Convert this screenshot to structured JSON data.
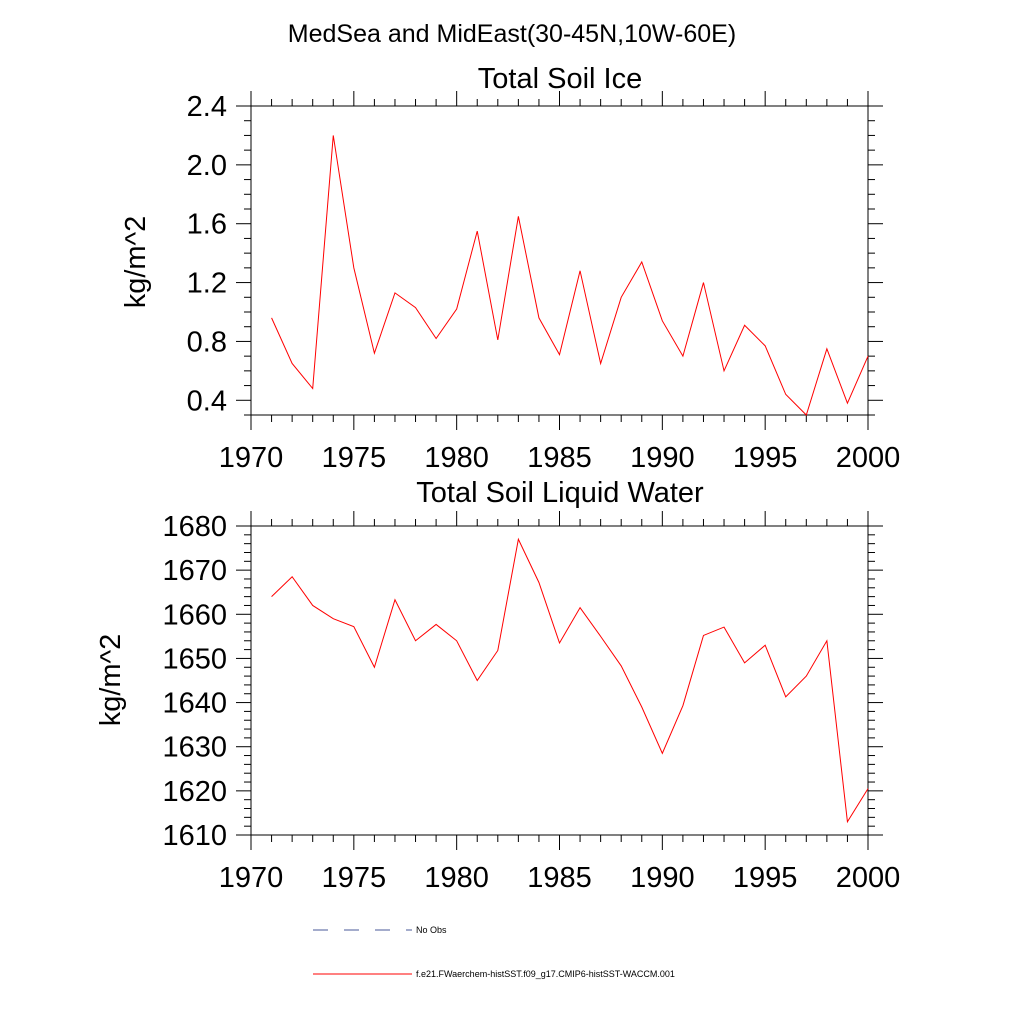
{
  "figure": {
    "main_title": "MedSea and MidEast(30-45N,10W-60E)"
  },
  "legend": {
    "obs_label": "No Obs",
    "obs_color": "#4a5a9a",
    "model_label": "f.e21.FWaerchem-histSST.f09_g17.CMIP6-histSST-WACCM.001",
    "model_color": "#ff0000"
  },
  "chart_data": [
    {
      "type": "line",
      "title": "Total Soil Ice",
      "xlabel": "",
      "ylabel": "kg/m^2",
      "xlim": [
        1970,
        2000
      ],
      "ylim": [
        0.3,
        2.4
      ],
      "xticks": [
        1970,
        1975,
        1980,
        1985,
        1990,
        1995,
        2000
      ],
      "yticks": [
        0.4,
        0.8,
        1.2,
        1.6,
        2.0,
        2.4
      ],
      "ytick_labels": [
        "0.4",
        "0.8",
        "1.2",
        "1.6",
        "2.0",
        "2.4"
      ],
      "y_minor_step": 0.1,
      "grid": false,
      "series": [
        {
          "name": "f.e21.FWaerchem-histSST.f09_g17.CMIP6-histSST-WACCM.001",
          "color": "#ff0000",
          "x": [
            1971,
            1972,
            1973,
            1974,
            1975,
            1976,
            1977,
            1978,
            1979,
            1980,
            1981,
            1982,
            1983,
            1984,
            1985,
            1986,
            1987,
            1988,
            1989,
            1990,
            1991,
            1992,
            1993,
            1994,
            1995,
            1996,
            1997,
            1998,
            1999,
            2000
          ],
          "values": [
            0.96,
            0.65,
            0.48,
            2.2,
            1.3,
            0.72,
            1.13,
            1.03,
            0.82,
            1.02,
            1.55,
            0.81,
            1.65,
            0.96,
            0.71,
            1.28,
            0.65,
            1.1,
            1.34,
            0.94,
            0.7,
            1.2,
            0.6,
            0.91,
            0.77,
            0.44,
            0.3,
            0.75,
            0.38,
            0.7
          ]
        }
      ]
    },
    {
      "type": "line",
      "title": "Total Soil Liquid Water",
      "xlabel": "",
      "ylabel": "kg/m^2",
      "xlim": [
        1970,
        2000
      ],
      "ylim": [
        1610,
        1680
      ],
      "xticks": [
        1970,
        1975,
        1980,
        1985,
        1990,
        1995,
        2000
      ],
      "yticks": [
        1610,
        1620,
        1630,
        1640,
        1650,
        1660,
        1670,
        1680
      ],
      "ytick_labels": [
        "1610",
        "1620",
        "1630",
        "1640",
        "1650",
        "1660",
        "1670",
        "1680"
      ],
      "y_minor_step": 2,
      "grid": false,
      "series": [
        {
          "name": "f.e21.FWaerchem-histSST.f09_g17.CMIP6-histSST-WACCM.001",
          "color": "#ff0000",
          "x": [
            1971,
            1972,
            1973,
            1974,
            1975,
            1976,
            1977,
            1978,
            1979,
            1980,
            1981,
            1982,
            1983,
            1984,
            1985,
            1986,
            1987,
            1988,
            1989,
            1990,
            1991,
            1992,
            1993,
            1994,
            1995,
            1996,
            1997,
            1998,
            1999,
            2000
          ],
          "values": [
            1664,
            1668.5,
            1662,
            1659,
            1657.2,
            1648,
            1663.3,
            1654,
            1657.7,
            1654,
            1645,
            1651.8,
            1677,
            1667.2,
            1653.5,
            1661.5,
            1655,
            1648.3,
            1639,
            1628.5,
            1639.3,
            1655.2,
            1657.1,
            1649,
            1653,
            1641.3,
            1646,
            1654,
            1613,
            1620.5
          ]
        }
      ]
    }
  ]
}
